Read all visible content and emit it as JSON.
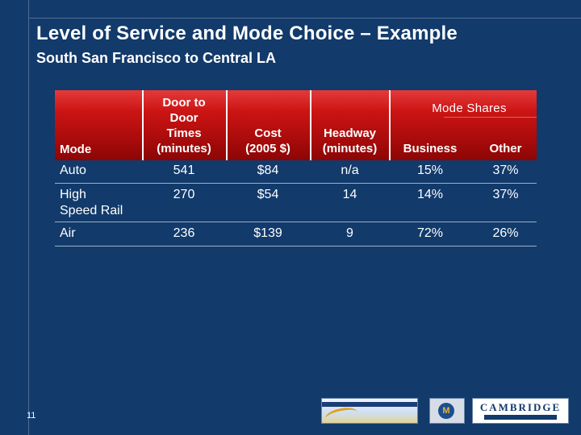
{
  "slide": {
    "title": "Level of Service and Mode Choice – Example",
    "subtitle": "South San Francisco to Central LA",
    "page_number": "11"
  },
  "table": {
    "headers": {
      "mode": "Mode",
      "door_to_door": "Door to\nDoor\nTimes\n(minutes)",
      "cost": "Cost\n(2005 $)",
      "headway": "Headway\n(minutes)",
      "mode_shares": "Mode Shares",
      "business": "Business",
      "other": "Other"
    },
    "rows": [
      {
        "mode": "Auto",
        "door_to_door": "541",
        "cost": "$84",
        "headway": "n/a",
        "business": "15%",
        "other": "37%"
      },
      {
        "mode": "High\nSpeed Rail",
        "door_to_door": "270",
        "cost": "$54",
        "headway": "14",
        "business": "14%",
        "other": "37%"
      },
      {
        "mode": "Air",
        "door_to_door": "236",
        "cost": "$139",
        "headway": "9",
        "business": "72%",
        "other": "26%"
      }
    ]
  },
  "logos": {
    "cs_word": "CAMBRIDGE",
    "m_letter": "M"
  }
}
